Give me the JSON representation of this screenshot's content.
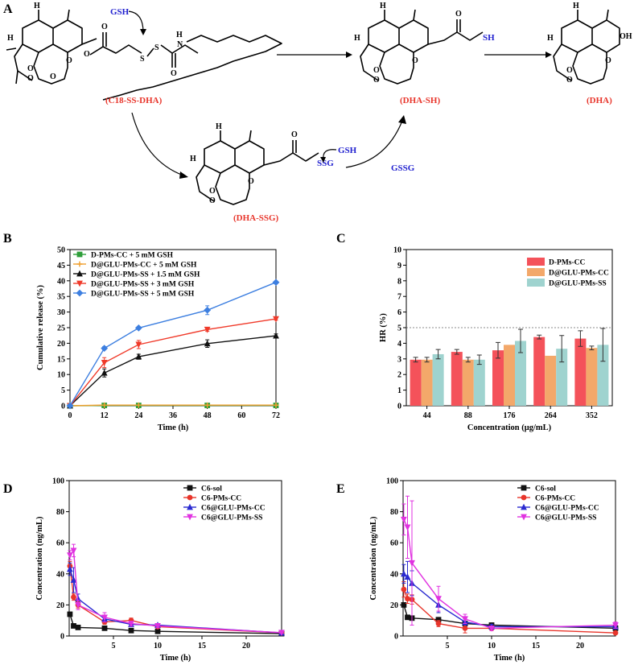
{
  "panels": {
    "a": "A",
    "b": "B",
    "c": "C",
    "d": "D",
    "e": "E"
  },
  "scheme": {
    "compounds": [
      "(C18-SS-DHA)",
      "(DHA-SH)",
      "(DHA)",
      "(DHA-SSG)"
    ],
    "reagents": {
      "gsh_top": "GSH",
      "gsh_mid": "GSH",
      "gssg": "GSSG"
    },
    "atoms": {
      "H": "H",
      "O": "O",
      "N": "N",
      "S": "S",
      "OH": "OH",
      "SH": "SH",
      "SSG": "SSG"
    }
  },
  "chart_data": [
    {
      "id": "B",
      "type": "line",
      "title": "",
      "xlabel": "Time (h)",
      "ylabel": "Cumulative release (%)",
      "xlim": [
        0,
        72
      ],
      "ylim": [
        0,
        50
      ],
      "xticks": [
        0,
        12,
        24,
        36,
        48,
        60,
        72
      ],
      "yticks": [
        0,
        5,
        10,
        15,
        20,
        25,
        30,
        35,
        40,
        45,
        50
      ],
      "x": [
        0,
        12,
        24,
        48,
        72
      ],
      "legend_position": "top-left",
      "series": [
        {
          "name": "D-PMs-CC + 5 mM GSH",
          "color": "#2e9e3a",
          "marker": "square",
          "values": [
            0,
            0.1,
            0.1,
            0.1,
            0.1
          ],
          "errors": [
            0,
            0,
            0,
            0,
            0
          ]
        },
        {
          "name": "D@GLU-PMs-CC + 5 mM GSH",
          "color": "#f0a030",
          "marker": "plus",
          "values": [
            0,
            0.2,
            0.2,
            0.2,
            0.2
          ],
          "errors": [
            0,
            0,
            0,
            0,
            0
          ]
        },
        {
          "name": "D@GLU-PMs-SS + 1.5 mM GSH",
          "color": "#111111",
          "marker": "triangle-up",
          "values": [
            0,
            10.5,
            15.7,
            19.9,
            22.4
          ],
          "errors": [
            0,
            1.3,
            0.8,
            1.2,
            0.6
          ]
        },
        {
          "name": "D@GLU-PMs-SS + 3 mM GSH",
          "color": "#f03a2a",
          "marker": "triangle-down",
          "values": [
            0,
            13.8,
            19.6,
            24.4,
            27.8
          ],
          "errors": [
            0,
            1.6,
            1.3,
            0.6,
            0.4
          ]
        },
        {
          "name": "D@GLU-PMs-SS + 5 mM GSH",
          "color": "#3d7fe0",
          "marker": "diamond",
          "values": [
            0,
            18.4,
            24.9,
            30.6,
            39.5
          ],
          "errors": [
            0,
            0.5,
            0.4,
            1.4,
            0.4
          ]
        }
      ]
    },
    {
      "id": "C",
      "type": "bar",
      "title": "",
      "xlabel": "Concentration (μg/mL)",
      "ylabel": "HR (%)",
      "ylim": [
        0,
        10
      ],
      "yticks": [
        0,
        1,
        2,
        3,
        4,
        5,
        6,
        7,
        8,
        9,
        10
      ],
      "categories": [
        "44",
        "88",
        "176",
        "264",
        "352"
      ],
      "reference_line": 5,
      "legend_position": "top-left",
      "series": [
        {
          "name": "D-PMs-CC",
          "color": "#f4525a",
          "values": [
            2.95,
            3.45,
            3.55,
            4.4,
            4.3
          ],
          "errors": [
            0.15,
            0.15,
            0.5,
            0.12,
            0.5
          ]
        },
        {
          "name": "D@GLU-PMs-CC",
          "color": "#f3a86a",
          "values": [
            2.95,
            2.95,
            3.9,
            3.2,
            3.7
          ],
          "errors": [
            0.15,
            0.15,
            0.0,
            0.0,
            0.12
          ]
        },
        {
          "name": "D@GLU-PMs-SS",
          "color": "#9fd3cf",
          "values": [
            3.3,
            2.95,
            4.15,
            3.65,
            3.9
          ],
          "errors": [
            0.3,
            0.3,
            0.75,
            0.85,
            1.05
          ]
        }
      ]
    },
    {
      "id": "D",
      "type": "line",
      "title": "",
      "xlabel": "Time (h)",
      "ylabel": "Concentration (ng/mL)",
      "xlim": [
        0,
        24
      ],
      "ylim": [
        0,
        100
      ],
      "xticks": [
        5,
        10,
        15,
        20
      ],
      "yticks": [
        0,
        20,
        40,
        60,
        80,
        100
      ],
      "legend_position": "top-right",
      "series": [
        {
          "name": "C6-sol",
          "color": "#111111",
          "marker": "square",
          "x": [
            0.083,
            0.5,
            1,
            4,
            7,
            10,
            24
          ],
          "values": [
            14,
            6.5,
            5.5,
            5,
            3.5,
            3,
            1.5
          ],
          "errors": [
            0,
            0,
            0,
            0.6,
            0.5,
            0.4,
            0.3
          ]
        },
        {
          "name": "C6-PMs-CC",
          "color": "#e8352b",
          "marker": "circle",
          "x": [
            0.083,
            0.5,
            1,
            4,
            7,
            10,
            24
          ],
          "values": [
            45,
            25,
            20,
            9,
            10,
            6,
            2
          ],
          "errors": [
            3,
            2,
            2,
            1.5,
            1.5,
            1,
            0.3
          ]
        },
        {
          "name": "C6@GLU-PMs-CC",
          "color": "#2a2ad0",
          "marker": "triangle-up",
          "x": [
            0.083,
            0.5,
            1,
            4,
            7,
            10,
            24
          ],
          "values": [
            43,
            36,
            24,
            11,
            7.5,
            7,
            2
          ],
          "errors": [
            4,
            8,
            3,
            2,
            1,
            1,
            0.3
          ]
        },
        {
          "name": "C6@GLU-PMs-SS",
          "color": "#e032e0",
          "marker": "triangle-down",
          "x": [
            0.083,
            0.5,
            1,
            4,
            7,
            10,
            24
          ],
          "values": [
            52,
            55,
            20,
            12,
            8,
            6.5,
            2.2
          ],
          "errors": [
            3,
            4,
            3,
            3,
            1.5,
            1.2,
            0.4
          ]
        }
      ]
    },
    {
      "id": "E",
      "type": "line",
      "title": "",
      "xlabel": "Time (h)",
      "ylabel": "Concentration (ng/mL)",
      "xlim": [
        0,
        24
      ],
      "ylim": [
        0,
        100
      ],
      "xticks": [
        5,
        10,
        15,
        20
      ],
      "yticks": [
        0,
        20,
        40,
        60,
        80,
        100
      ],
      "legend_position": "top-right",
      "series": [
        {
          "name": "C6-sol",
          "color": "#111111",
          "marker": "square",
          "x": [
            0.083,
            0.5,
            1,
            4,
            7,
            10,
            24
          ],
          "values": [
            20,
            12,
            11.5,
            10.5,
            8,
            7,
            5
          ],
          "errors": [
            0,
            0,
            1,
            1,
            1,
            1,
            0.5
          ]
        },
        {
          "name": "C6-PMs-CC",
          "color": "#e8352b",
          "marker": "circle",
          "x": [
            0.083,
            0.5,
            1,
            4,
            7,
            10,
            24
          ],
          "values": [
            30,
            24,
            23.5,
            8,
            5,
            5,
            2
          ],
          "errors": [
            5,
            3,
            3,
            2,
            3,
            1.5,
            0.5
          ]
        },
        {
          "name": "C6@GLU-PMs-CC",
          "color": "#2a2ad0",
          "marker": "triangle-up",
          "x": [
            0.083,
            0.5,
            1,
            4,
            7,
            10,
            24
          ],
          "values": [
            40,
            38,
            34,
            20,
            9,
            6,
            6
          ],
          "errors": [
            6,
            10,
            8,
            5,
            2,
            1.5,
            1
          ]
        },
        {
          "name": "C6@GLU-PMs-SS",
          "color": "#e032e0",
          "marker": "triangle-down",
          "x": [
            0.083,
            0.5,
            1,
            4,
            7,
            10,
            24
          ],
          "values": [
            75,
            70,
            47,
            24,
            11,
            5,
            7
          ],
          "errors": [
            10,
            20,
            40,
            8,
            3,
            1.5,
            2
          ]
        }
      ]
    }
  ]
}
